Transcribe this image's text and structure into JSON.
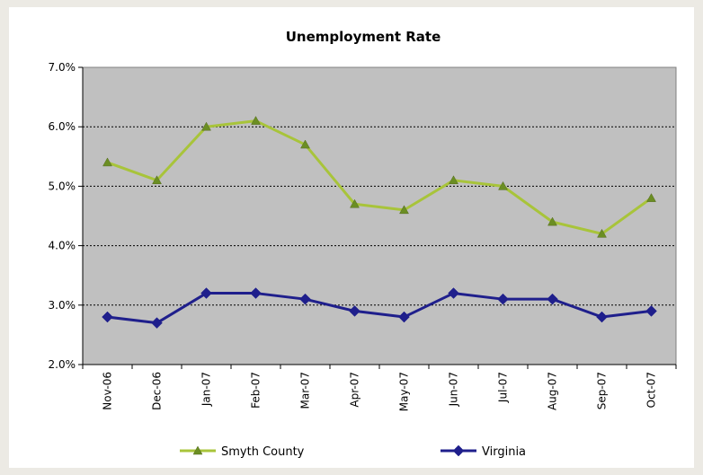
{
  "chart_data": {
    "type": "line",
    "title": "Unemployment Rate",
    "xlabel": "",
    "ylabel": "",
    "categories": [
      "Nov-06",
      "Dec-06",
      "Jan-07",
      "Feb-07",
      "Mar-07",
      "Apr-07",
      "May-07",
      "Jun-07",
      "Jul-07",
      "Aug-07",
      "Sep-07",
      "Oct-07"
    ],
    "y_ticks": [
      "2.0%",
      "3.0%",
      "4.0%",
      "5.0%",
      "6.0%",
      "7.0%"
    ],
    "ylim": [
      2.0,
      7.0
    ],
    "grid": "horizontal dotted",
    "legend_position": "bottom",
    "plot_background": "#C0C0C0",
    "series": [
      {
        "name": "Smyth County",
        "color": "#A8C43A",
        "marker": "triangle",
        "values": [
          5.4,
          5.1,
          6.0,
          6.1,
          5.7,
          4.7,
          4.6,
          5.1,
          5.0,
          4.4,
          4.2,
          4.8
        ]
      },
      {
        "name": "Virginia",
        "color": "#1F1F8C",
        "marker": "diamond",
        "values": [
          2.8,
          2.7,
          3.2,
          3.2,
          3.1,
          2.9,
          2.8,
          3.2,
          3.1,
          3.1,
          2.8,
          2.9
        ]
      }
    ]
  }
}
